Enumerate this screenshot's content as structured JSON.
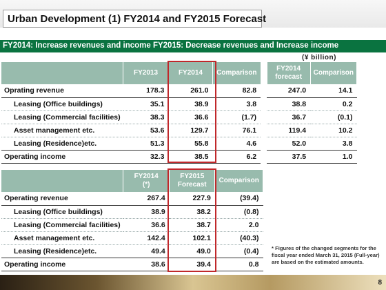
{
  "title": "Urban Development (1) FY2014 and FY2015 Forecast",
  "subtitle": "FY2014: Increase revenues and income FY2015: Decrease revenues and Increase income",
  "unit": "(¥ billion)",
  "table1": {
    "headers": [
      "FY2013",
      "FY2014",
      "Comparison",
      "FY2014 forecast",
      "Comparison"
    ],
    "header_lines": [
      [
        "FY2013"
      ],
      [
        "FY2014"
      ],
      [
        "Comparison"
      ],
      [
        "FY2014",
        "forecast"
      ],
      [
        "Comparison"
      ]
    ],
    "rows": [
      {
        "label": "Oprating revenue",
        "values": [
          "178.3",
          "261.0",
          "82.8",
          "247.0",
          "14.1"
        ]
      },
      {
        "label": "Leasing (Office buildings)",
        "values": [
          "35.1",
          "38.9",
          "3.8",
          "38.8",
          "0.2"
        ]
      },
      {
        "label": "Leasing (Commercial facilities)",
        "values": [
          "38.3",
          "36.6",
          "(1.7)",
          "36.7",
          "(0.1)"
        ]
      },
      {
        "label": "Asset management etc.",
        "values": [
          "53.6",
          "129.7",
          "76.1",
          "119.4",
          "10.2"
        ]
      },
      {
        "label": "Leasing (Residence)etc.",
        "values": [
          "51.3",
          "55.8",
          "4.6",
          "52.0",
          "3.8"
        ]
      },
      {
        "label": "Operating income",
        "values": [
          "32.3",
          "38.5",
          "6.2",
          "37.5",
          "1.0"
        ]
      }
    ]
  },
  "table2": {
    "header_lines": [
      [
        "FY2014",
        "(*)"
      ],
      [
        "FY2015",
        "Forecast"
      ],
      [
        "Comparison"
      ]
    ],
    "rows": [
      {
        "label": "Operating revenue",
        "values": [
          "267.4",
          "227.9",
          "(39.4)"
        ]
      },
      {
        "label": "Leasing (Office buildings)",
        "values": [
          "38.9",
          "38.2",
          "(0.8)"
        ]
      },
      {
        "label": "Leasing (Commercial facilities)",
        "values": [
          "36.6",
          "38.7",
          "2.0"
        ]
      },
      {
        "label": "Asset management etc.",
        "values": [
          "142.4",
          "102.1",
          "(40.3)"
        ]
      },
      {
        "label": "Leasing (Residence)etc.",
        "values": [
          "49.4",
          "49.0",
          "(0.4)"
        ]
      },
      {
        "label": "Operating income",
        "values": [
          "38.6",
          "39.4",
          "0.8"
        ]
      }
    ]
  },
  "note": "* Figures of the changed segments for the fiscal year ended March 31, 2015 (Full-year) are based on the estimated amounts.",
  "page_number": "8",
  "colors": {
    "header": "#98bbad",
    "subtitle_bar": "#0a7340",
    "highlight": "#c0282b"
  }
}
